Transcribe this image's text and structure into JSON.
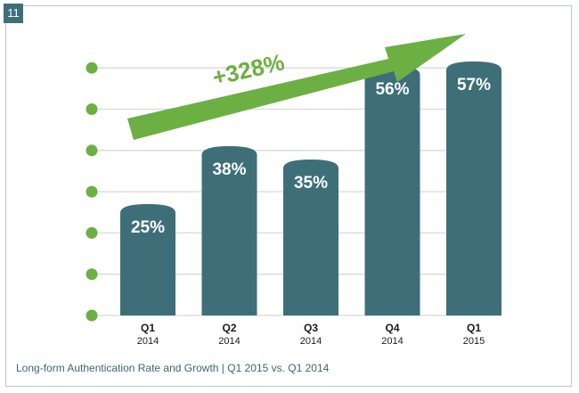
{
  "page_number": "11",
  "caption": "Long-form Authentication Rate and Growth | Q1 2015 vs. Q1 2014",
  "colors": {
    "bar": "#3e6f78",
    "accent_green": "#6cb043",
    "gridline": "#d6dadb",
    "frame": "#bfc7c9"
  },
  "chart_data": {
    "type": "bar",
    "categories": [
      {
        "quarter": "Q1",
        "year": "2014"
      },
      {
        "quarter": "Q2",
        "year": "2014"
      },
      {
        "quarter": "Q3",
        "year": "2014"
      },
      {
        "quarter": "Q4",
        "year": "2014"
      },
      {
        "quarter": "Q1",
        "year": "2015"
      }
    ],
    "values": [
      25,
      38,
      35,
      56,
      57
    ],
    "value_labels": [
      "25%",
      "38%",
      "35%",
      "56%",
      "57%"
    ],
    "ylim": [
      0,
      60
    ],
    "grid": true,
    "annotation": {
      "text": "+328%",
      "icon": "up-trend-arrow-icon"
    }
  }
}
